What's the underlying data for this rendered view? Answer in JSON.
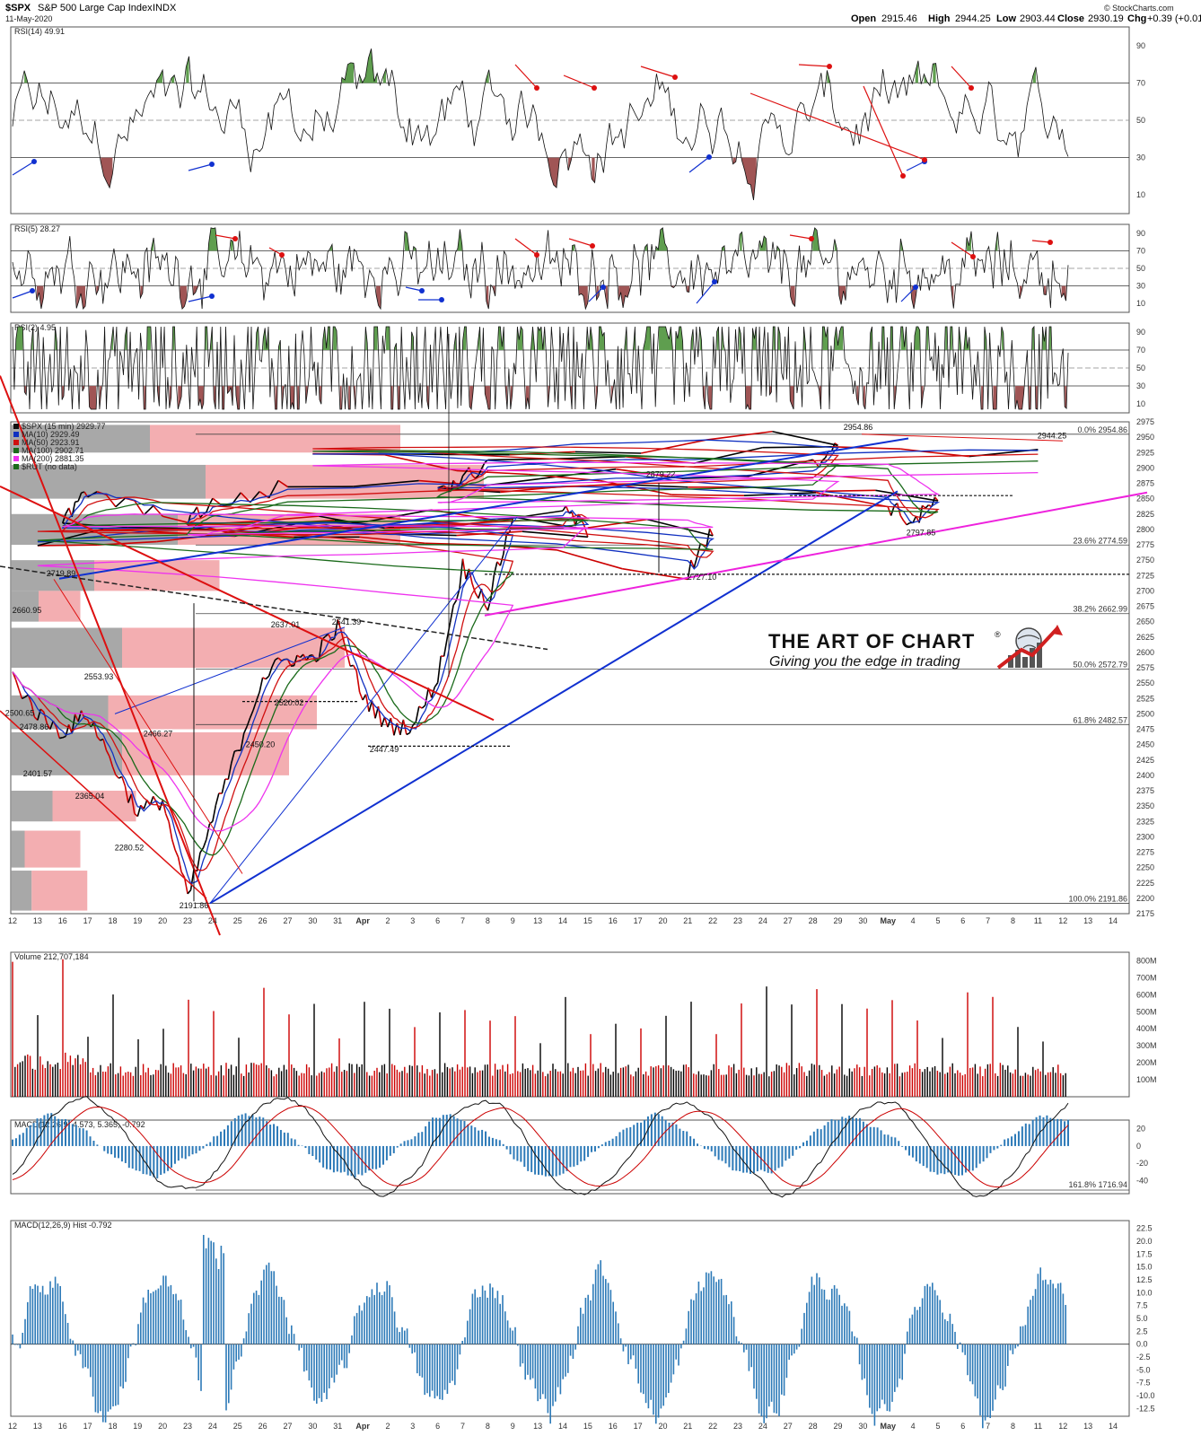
{
  "header": {
    "symbol": "$SPX",
    "name": "S&P 500 Large Cap Index",
    "exchange": "INDX",
    "date": "11-May-2020",
    "copyright": "© StockCharts.com",
    "open_label": "Open",
    "open": "2915.46",
    "high_label": "High",
    "high": "2944.25",
    "low_label": "Low",
    "low": "2903.44",
    "close_label": "Close",
    "close": "2930.19",
    "chg_label": "Chg",
    "chg": "+0.39 (+0.01%)"
  },
  "logo": {
    "title": "THE ART OF CHART",
    "tagline": "Giving you the edge in trading",
    "mark": "®"
  },
  "colors": {
    "up": "#000000",
    "down": "#cc0000",
    "ma10": "#1030c0",
    "ma50": "#d01010",
    "ma100": "#1a6a1a",
    "ma200": "#ee33ee",
    "trend_blue": "#1030d0",
    "trend_red": "#dd1010",
    "trend_magenta": "#ee22dd",
    "vp_gray": "#999999",
    "vp_pink": "#f2a5a8",
    "rsi_green": "#5f9e4f",
    "rsi_red": "#a05555",
    "macd_hist": "#2d7ab8"
  },
  "x_axis": {
    "labels": [
      "12",
      "13",
      "16",
      "17",
      "18",
      "19",
      "20",
      "23",
      "24",
      "25",
      "26",
      "27",
      "30",
      "31",
      "Apr",
      "2",
      "3",
      "6",
      "7",
      "8",
      "9",
      "13",
      "14",
      "15",
      "16",
      "17",
      "20",
      "21",
      "22",
      "23",
      "24",
      "27",
      "28",
      "29",
      "30",
      "May",
      "4",
      "5",
      "6",
      "7",
      "8",
      "11",
      "12",
      "13",
      "14"
    ]
  },
  "panels": {
    "rsi14": {
      "label": "RSI(14) 49.91",
      "ticks": [
        "90",
        "70",
        "50",
        "30",
        "10"
      ]
    },
    "rsi5": {
      "label": "RSI(5) 28.27",
      "ticks": [
        "90",
        "70",
        "50",
        "30",
        "10"
      ]
    },
    "rsi2": {
      "label": "RSI(2) 4.95",
      "ticks": [
        "90",
        "70",
        "50",
        "30",
        "10"
      ]
    },
    "price": {
      "legend": [
        "$SPX (15 min) 2929.77",
        "MA(10) 2929.49",
        "MA(50) 2923.91",
        "MA(100) 2902.71",
        "MA(200) 2881.35",
        "$RUT (no data)"
      ],
      "ticks": [
        "2975",
        "2950",
        "2925",
        "2900",
        "2875",
        "2850",
        "2825",
        "2800",
        "2775",
        "2750",
        "2725",
        "2700",
        "2675",
        "2650",
        "2625",
        "2600",
        "2575",
        "2550",
        "2525",
        "2500",
        "2475",
        "2450",
        "2425",
        "2400",
        "2375",
        "2350",
        "2325",
        "2300",
        "2275",
        "2250",
        "2225",
        "2200",
        "2175"
      ],
      "fib_labels": [
        "0.0% 2954.86",
        "23.6% 2774.59",
        "38.2% 2662.99",
        "50.0% 2572.79",
        "61.8% 2482.57",
        "100.0% 2191.86"
      ],
      "annotations": [
        "2954.86",
        "2944.25",
        "2879.22",
        "2797.85",
        "2727.10",
        "2719.89",
        "2660.95",
        "2637.01",
        "2641.39",
        "2553.93",
        "2520.02",
        "2500.65",
        "2478.86",
        "2466.27",
        "2447.49",
        "2450.20",
        "2401.57",
        "2365.04",
        "2280.52",
        "2191.86"
      ]
    },
    "volume": {
      "label": "Volume 212,707,184",
      "ticks": [
        "800M",
        "700M",
        "600M",
        "500M",
        "400M",
        "300M",
        "200M",
        "100M"
      ]
    },
    "macd": {
      "label": "MACD(12,26,9) 4.573, 5.365, -0.792",
      "ticks": [
        "20",
        "0",
        "-20",
        "-40"
      ],
      "fib_label": "161.8% 1716.94"
    },
    "hist": {
      "label": "MACD(12,26,9) Hist -0.792",
      "ticks": [
        "22.5",
        "20.0",
        "17.5",
        "15.0",
        "12.5",
        "10.0",
        "7.5",
        "5.0",
        "2.5",
        "0.0",
        "-2.5",
        "-5.0",
        "-7.5",
        "-10.0",
        "-12.5"
      ]
    }
  },
  "chart_data": {
    "type": "line",
    "series": [
      {
        "name": "$SPX (15 min) 2929.77",
        "x": [
          "12",
          "13",
          "16",
          "17",
          "18",
          "19",
          "20",
          "23",
          "24",
          "25",
          "26",
          "27",
          "30",
          "31",
          "Apr",
          "2",
          "3",
          "6",
          "7",
          "8",
          "9",
          "13",
          "14",
          "15",
          "16",
          "17",
          "20",
          "21",
          "22",
          "23",
          "24",
          "27",
          "28",
          "29",
          "30",
          "May",
          "4",
          "5",
          "6",
          "7",
          "8",
          "11"
        ],
        "values": [
          2560,
          2500,
          2470,
          2500,
          2420,
          2340,
          2360,
          2200,
          2330,
          2440,
          2560,
          2590,
          2590,
          2640,
          2530,
          2480,
          2480,
          2560,
          2740,
          2680,
          2820,
          2780,
          2830,
          2800,
          2810,
          2860,
          2820,
          2730,
          2800,
          2820,
          2840,
          2870,
          2900,
          2950,
          2920,
          2840,
          2810,
          2850,
          2870,
          2880,
          2910,
          2930
        ]
      }
    ],
    "ylim": [
      2175,
      2975
    ],
    "fib_levels": [
      {
        "label": "0.0%",
        "value": 2954.86
      },
      {
        "label": "23.6%",
        "value": 2774.59
      },
      {
        "label": "38.2%",
        "value": 2662.99
      },
      {
        "label": "50.0%",
        "value": 2572.79
      },
      {
        "label": "61.8%",
        "value": 2482.57
      },
      {
        "label": "100.0%",
        "value": 2191.86
      }
    ]
  }
}
